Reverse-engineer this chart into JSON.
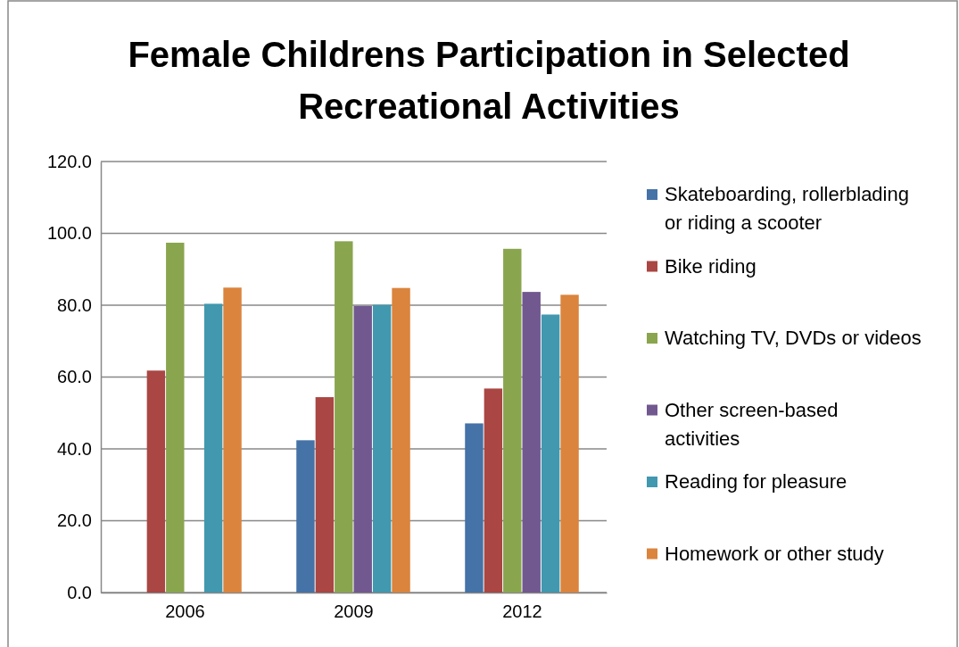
{
  "chart_data": {
    "type": "bar",
    "title": "Female Childrens Participation in Selected Recreational Activities",
    "categories": [
      "2006",
      "2009",
      "2012"
    ],
    "series": [
      {
        "name": "Skateboarding, rollerblading or riding a scooter",
        "color": "#4572a7",
        "values": [
          null,
          42.4,
          47.1
        ]
      },
      {
        "name": "Bike riding",
        "color": "#aa4643",
        "values": [
          61.8,
          54.4,
          56.8
        ]
      },
      {
        "name": "Watching TV, DVDs or videos",
        "color": "#89a54e",
        "values": [
          97.4,
          97.8,
          95.7
        ]
      },
      {
        "name": "Other screen-based activities",
        "color": "#71588f",
        "values": [
          null,
          79.8,
          83.7
        ]
      },
      {
        "name": "Reading for pleasure",
        "color": "#4198af",
        "values": [
          80.4,
          80.1,
          77.4
        ]
      },
      {
        "name": "Homework or other study",
        "color": "#db843d",
        "values": [
          84.9,
          84.8,
          82.9
        ]
      }
    ],
    "ylim": [
      0,
      120
    ],
    "yticks": [
      {
        "value": 0,
        "label": "0.0"
      },
      {
        "value": 20,
        "label": "20.0"
      },
      {
        "value": 40,
        "label": "40.0"
      },
      {
        "value": 60,
        "label": "60.0"
      },
      {
        "value": 80,
        "label": "80.0"
      },
      {
        "value": 100,
        "label": "100.0"
      },
      {
        "value": 120,
        "label": "120.0"
      }
    ],
    "grid": "y",
    "legend": "right"
  }
}
